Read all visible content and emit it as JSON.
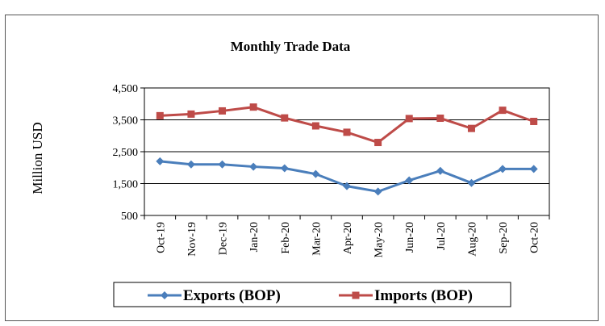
{
  "chart_data": {
    "type": "line",
    "title": "Monthly Trade Data",
    "ylabel": "Million USD",
    "xlabel": "",
    "categories": [
      "Oct-19",
      "Nov-19",
      "Dec-19",
      "Jan-20",
      "Feb-20",
      "Mar-20",
      "Apr-20",
      "May-20",
      "Jun-20",
      "Jul-20",
      "Aug-20",
      "Sep-20",
      "Oct-20"
    ],
    "ylim": [
      500,
      4500
    ],
    "yticks": [
      "4,500",
      "3,500",
      "2,500",
      "1,500",
      "500"
    ],
    "ytick_values": [
      4500,
      3500,
      2500,
      1500,
      500
    ],
    "grid": "horizontal",
    "legend_position": "bottom",
    "series": [
      {
        "name": "Exports (BOP)",
        "color": "#4A7EBB",
        "marker": "diamond",
        "values": [
          2200,
          2100,
          2100,
          2030,
          1980,
          1800,
          1420,
          1250,
          1600,
          1900,
          1520,
          1960,
          1960
        ]
      },
      {
        "name": "Imports (BOP)",
        "color": "#BE4B48",
        "marker": "square",
        "values": [
          3630,
          3680,
          3780,
          3900,
          3560,
          3310,
          3110,
          2790,
          3540,
          3550,
          3230,
          3800,
          3450
        ]
      }
    ]
  }
}
